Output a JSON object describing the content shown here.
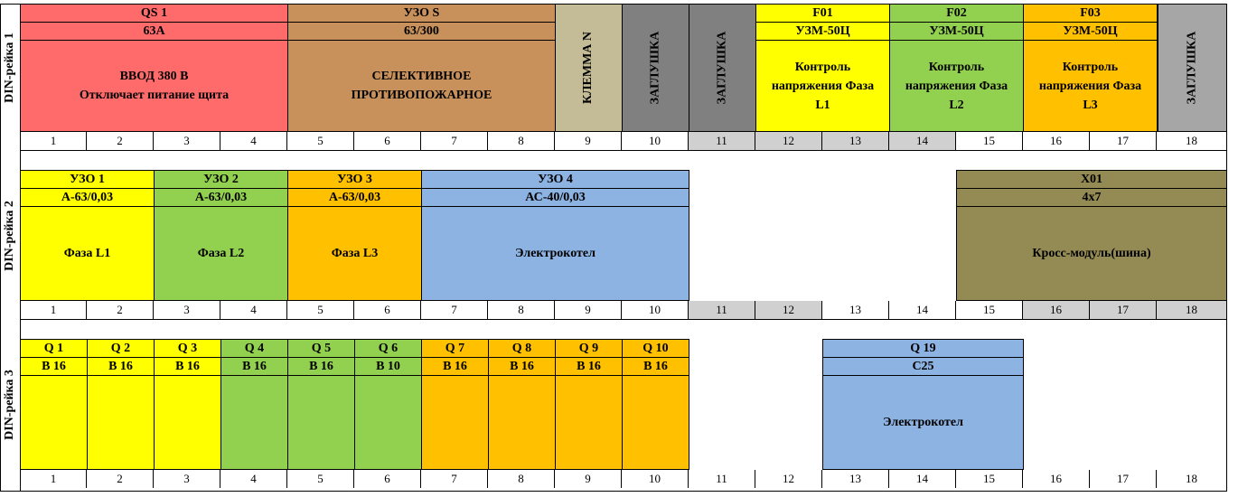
{
  "rails": [
    {
      "label": "DIN-рейка 1",
      "numbers": [
        "1",
        "2",
        "3",
        "4",
        "5",
        "6",
        "7",
        "8",
        "9",
        "10",
        "11",
        "12",
        "13",
        "14",
        "15",
        "16",
        "17",
        "18"
      ],
      "gray_positions": [
        11,
        12,
        13,
        14
      ],
      "modules": [
        {
          "title": "QS 1",
          "rating": "63А",
          "desc_lines": [
            "ВВОД 380 В",
            "Отключает питание щита"
          ],
          "color": "#ff6b6b"
        },
        {
          "title": "УЗО S",
          "rating": "63/300",
          "desc_lines": [
            "СЕЛЕКТИВНОЕ",
            "ПРОТИВОПОЖАРНОЕ"
          ],
          "color": "#c8915c"
        },
        {
          "vertical": "КЛЕММА N",
          "color": "#c4bc97"
        },
        {
          "vertical": "ЗАГЛУШКА",
          "color": "#808080"
        },
        {
          "vertical": "ЗАГЛУШКА",
          "color": "#808080"
        },
        {
          "title": "F01",
          "rating": "УЗМ-50Ц",
          "desc_lines": [
            "Контроль",
            "напряжения Фаза",
            "L1"
          ],
          "color": "#ffff00"
        },
        {
          "title": "F02",
          "rating": "УЗМ-50Ц",
          "desc_lines": [
            "Контроль",
            "напряжения Фаза",
            "L2"
          ],
          "color": "#92d050"
        },
        {
          "title": "F03",
          "rating": "УЗМ-50Ц",
          "desc_lines": [
            "Контроль",
            "напряжения Фаза",
            "L3"
          ],
          "color": "#ffc000"
        },
        {
          "vertical": "ЗАГЛУШКА",
          "color": "#a6a6a6"
        }
      ]
    },
    {
      "label": "DIN-рейка 2",
      "numbers": [
        "1",
        "2",
        "3",
        "4",
        "5",
        "6",
        "7",
        "8",
        "9",
        "10",
        "11",
        "12",
        "13",
        "14",
        "15",
        "16",
        "17",
        "18"
      ],
      "gray_positions": [
        11,
        12,
        16,
        17,
        18
      ],
      "modules": [
        {
          "title": "УЗО 1",
          "rating": "А-63/0,03",
          "desc_lines": [
            "Фаза L1"
          ],
          "color": "#ffff00"
        },
        {
          "title": "УЗО 2",
          "rating": "А-63/0,03",
          "desc_lines": [
            "Фаза L2"
          ],
          "color": "#92d050"
        },
        {
          "title": "УЗО 3",
          "rating": "А-63/0,03",
          "desc_lines": [
            "Фаза L3"
          ],
          "color": "#ffc000"
        },
        {
          "title": "УЗО 4",
          "rating": "АС-40/0,03",
          "desc_lines": [
            "Электрокотел"
          ],
          "color": "#8db3e2"
        },
        {
          "title": "X01",
          "rating": "4x7",
          "desc_lines": [
            "Кросс-модуль(шина)"
          ],
          "color": "#948a54"
        }
      ]
    },
    {
      "label": "DIN-рейка 3",
      "numbers": [
        "1",
        "2",
        "3",
        "4",
        "5",
        "6",
        "7",
        "8",
        "9",
        "10",
        "11",
        "12",
        "13",
        "14",
        "15",
        "16",
        "17",
        "18"
      ],
      "gray_positions": [],
      "modules": [
        {
          "title": "Q 1",
          "rating": "В 16",
          "color": "#ffff00"
        },
        {
          "title": "Q 2",
          "rating": "В 16",
          "color": "#ffff00"
        },
        {
          "title": "Q 3",
          "rating": "В 16",
          "color": "#ffff00"
        },
        {
          "title": "Q 4",
          "rating": "В 16",
          "color": "#92d050"
        },
        {
          "title": "Q 5",
          "rating": "В 16",
          "color": "#92d050"
        },
        {
          "title": "Q 6",
          "rating": "В 10",
          "color": "#92d050"
        },
        {
          "title": "Q 7",
          "rating": "В 16",
          "color": "#ffc000"
        },
        {
          "title": "Q 8",
          "rating": "В 16",
          "color": "#ffc000"
        },
        {
          "title": "Q 9",
          "rating": "В 16",
          "color": "#ffc000"
        },
        {
          "title": "Q 10",
          "rating": "В 16",
          "color": "#ffc000"
        },
        {
          "title": "Q 19",
          "rating": "С25",
          "desc_lines": [
            "Электрокотел"
          ],
          "color": "#8db3e2"
        }
      ]
    }
  ]
}
